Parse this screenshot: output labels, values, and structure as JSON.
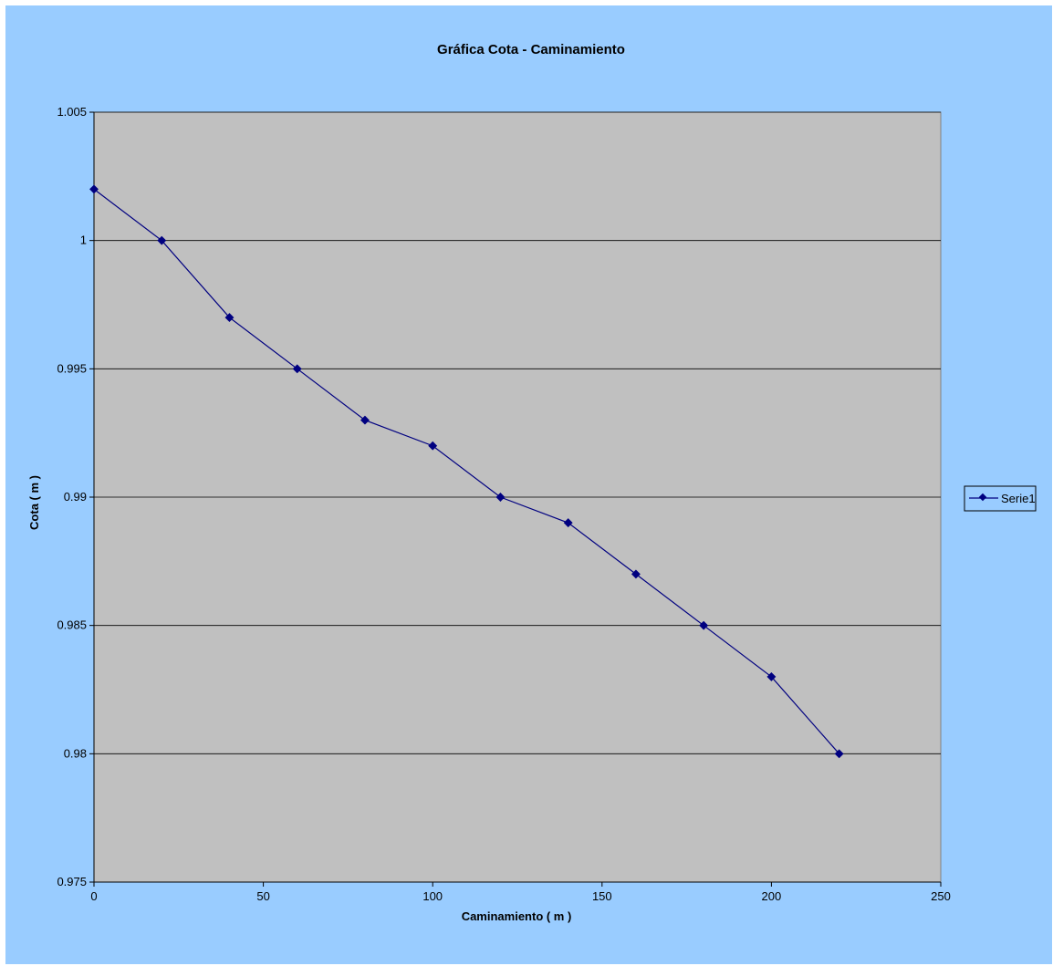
{
  "chart_data": {
    "type": "line",
    "title": "Gráfica Cota - Caminamiento",
    "xlabel": "Caminamiento ( m )",
    "ylabel": "Cota ( m )",
    "xlim": [
      0,
      250
    ],
    "ylim": [
      0.975,
      1.005
    ],
    "x_ticks": [
      "0",
      "50",
      "100",
      "150",
      "200",
      "250"
    ],
    "y_ticks": [
      "0.975",
      "0.98",
      "0.985",
      "0.99",
      "0.995",
      "1",
      "1.005"
    ],
    "grid": "horizontal",
    "legend": "right",
    "series": [
      {
        "name": "Serie1",
        "x": [
          0,
          20,
          40,
          60,
          80,
          100,
          120,
          140,
          160,
          180,
          200,
          220
        ],
        "values": [
          1.002,
          1.0,
          0.997,
          0.995,
          0.993,
          0.992,
          0.99,
          0.989,
          0.987,
          0.985,
          0.983,
          0.98
        ]
      }
    ],
    "colors": {
      "background": "#99ccff",
      "plot_area": "#c0c0c0",
      "series": "#000080",
      "grid": "#000000"
    }
  }
}
